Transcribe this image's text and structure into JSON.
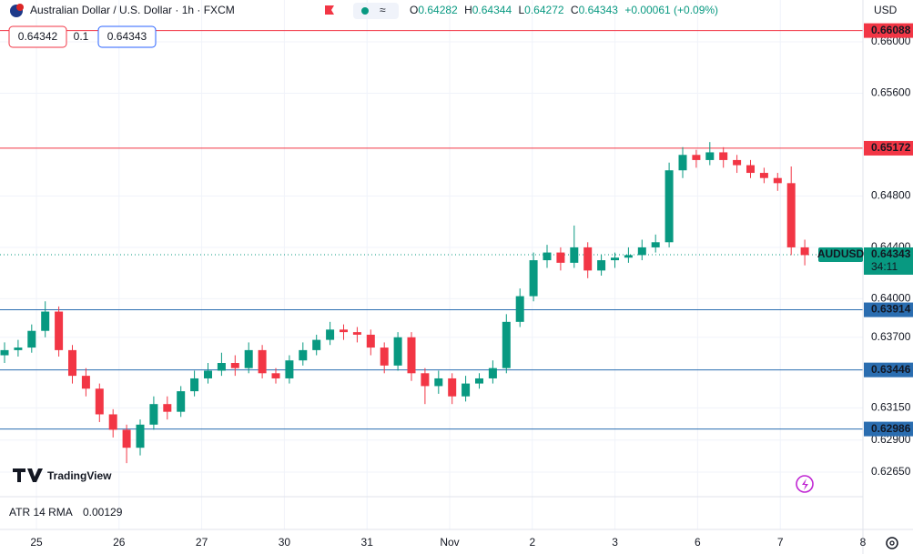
{
  "chart_data": {
    "type": "candlestick",
    "title": "Australian Dollar / U.S. Dollar · 1h · FXCM",
    "ohlc_legend": [
      {
        "key": "O",
        "value": 0.64282
      },
      {
        "key": "H",
        "value": 0.64344
      },
      {
        "key": "L",
        "value": 0.64272
      },
      {
        "key": "C",
        "value": 0.64343
      }
    ],
    "change": "+0.00061 (+0.09%)",
    "order_buttons": {
      "sell": 0.64342,
      "spread": 0.1,
      "buy": 0.64343
    },
    "currency": "USD",
    "watermark": "TradingView",
    "indicator": {
      "name": "ATR 14 RMA",
      "value": 0.00129
    },
    "categories": [
      "25",
      "26",
      "27",
      "30",
      "31",
      "Nov",
      "2",
      "3",
      "6",
      "7",
      "8"
    ],
    "ylim": [
      0.62466,
      0.66326
    ],
    "yticks": [
      {
        "value": 0.66,
        "label": "0.66000"
      },
      {
        "value": 0.656,
        "label": "0.65600"
      },
      {
        "value": 0.648,
        "label": "0.64800"
      },
      {
        "value": 0.644,
        "label": "0.64400"
      },
      {
        "value": 0.64,
        "label": "0.64000"
      },
      {
        "value": 0.637,
        "label": "0.63700"
      },
      {
        "value": 0.6315,
        "label": "0.63150"
      },
      {
        "value": 0.629,
        "label": "0.62900"
      },
      {
        "value": 0.6265,
        "label": "0.62650"
      }
    ],
    "grid": true,
    "up_color": "#089981",
    "down_color": "#f23645",
    "levels": [
      {
        "value": 0.66088,
        "color": "#f23645"
      },
      {
        "value": 0.65172,
        "color": "#f23645"
      },
      {
        "value": 0.63914,
        "color": "#2a6db0"
      },
      {
        "value": 0.63446,
        "color": "#2a6db0"
      },
      {
        "value": 0.62986,
        "color": "#2a6db0"
      }
    ],
    "last_price": {
      "symbol": "AUDUSD",
      "value": 0.64343,
      "countdown": "34:11",
      "color": "#089981"
    },
    "open": [
      0.6356,
      0.636,
      0.6362,
      0.6375,
      0.639,
      0.636,
      0.634,
      0.633,
      0.631,
      0.6298,
      0.6284,
      0.6302,
      0.6318,
      0.6312,
      0.6328,
      0.6338,
      0.6344,
      0.635,
      0.6346,
      0.636,
      0.6342,
      0.6338,
      0.6352,
      0.636,
      0.6368,
      0.6376,
      0.6374,
      0.6372,
      0.6362,
      0.6348,
      0.637,
      0.6342,
      0.6332,
      0.6338,
      0.6324,
      0.6334,
      0.6338,
      0.6346,
      0.6382,
      0.6402,
      0.643,
      0.6436,
      0.6428,
      0.644,
      0.6422,
      0.643,
      0.6432,
      0.6434,
      0.644,
      0.6444,
      0.65,
      0.6512,
      0.6508,
      0.6514,
      0.6508,
      0.6504,
      0.6498,
      0.6494,
      0.649,
      0.644
    ],
    "high": [
      0.6366,
      0.6368,
      0.638,
      0.6398,
      0.6394,
      0.6364,
      0.6346,
      0.6334,
      0.6314,
      0.6302,
      0.6306,
      0.6324,
      0.6324,
      0.6332,
      0.6344,
      0.635,
      0.6358,
      0.6356,
      0.6366,
      0.6364,
      0.6346,
      0.6356,
      0.6366,
      0.6372,
      0.6382,
      0.638,
      0.6378,
      0.6376,
      0.6366,
      0.6374,
      0.6374,
      0.6346,
      0.6344,
      0.6342,
      0.634,
      0.6342,
      0.6352,
      0.6388,
      0.6408,
      0.6436,
      0.6442,
      0.644,
      0.6457,
      0.6444,
      0.6434,
      0.6436,
      0.644,
      0.6446,
      0.645,
      0.6506,
      0.6518,
      0.6516,
      0.6522,
      0.6518,
      0.6512,
      0.6508,
      0.6502,
      0.6498,
      0.6503,
      0.6446
    ],
    "low": [
      0.635,
      0.6355,
      0.6358,
      0.637,
      0.6355,
      0.6334,
      0.6324,
      0.6304,
      0.6292,
      0.6272,
      0.6278,
      0.6298,
      0.6306,
      0.6308,
      0.6324,
      0.6334,
      0.634,
      0.634,
      0.6342,
      0.6338,
      0.6334,
      0.6334,
      0.6348,
      0.6356,
      0.6364,
      0.6368,
      0.6366,
      0.6356,
      0.6342,
      0.6344,
      0.6336,
      0.6318,
      0.6326,
      0.6318,
      0.632,
      0.633,
      0.6334,
      0.6342,
      0.6378,
      0.6398,
      0.6424,
      0.6422,
      0.6424,
      0.6416,
      0.6418,
      0.6424,
      0.6428,
      0.643,
      0.6436,
      0.644,
      0.6494,
      0.6502,
      0.6504,
      0.6502,
      0.6498,
      0.6494,
      0.649,
      0.6484,
      0.6434,
      0.6426
    ],
    "close": [
      0.636,
      0.6362,
      0.6375,
      0.639,
      0.636,
      0.634,
      0.633,
      0.631,
      0.6298,
      0.6284,
      0.6302,
      0.6318,
      0.6312,
      0.6328,
      0.6338,
      0.6344,
      0.635,
      0.6346,
      0.636,
      0.6342,
      0.6338,
      0.6352,
      0.636,
      0.6368,
      0.6376,
      0.6374,
      0.6372,
      0.6362,
      0.6348,
      0.637,
      0.6342,
      0.6332,
      0.6338,
      0.6324,
      0.6334,
      0.6338,
      0.6346,
      0.6382,
      0.6402,
      0.643,
      0.6436,
      0.6428,
      0.644,
      0.6422,
      0.643,
      0.6432,
      0.6434,
      0.644,
      0.6444,
      0.65,
      0.6512,
      0.6508,
      0.6514,
      0.6508,
      0.6504,
      0.6498,
      0.6494,
      0.649,
      0.644,
      0.6434
    ]
  }
}
